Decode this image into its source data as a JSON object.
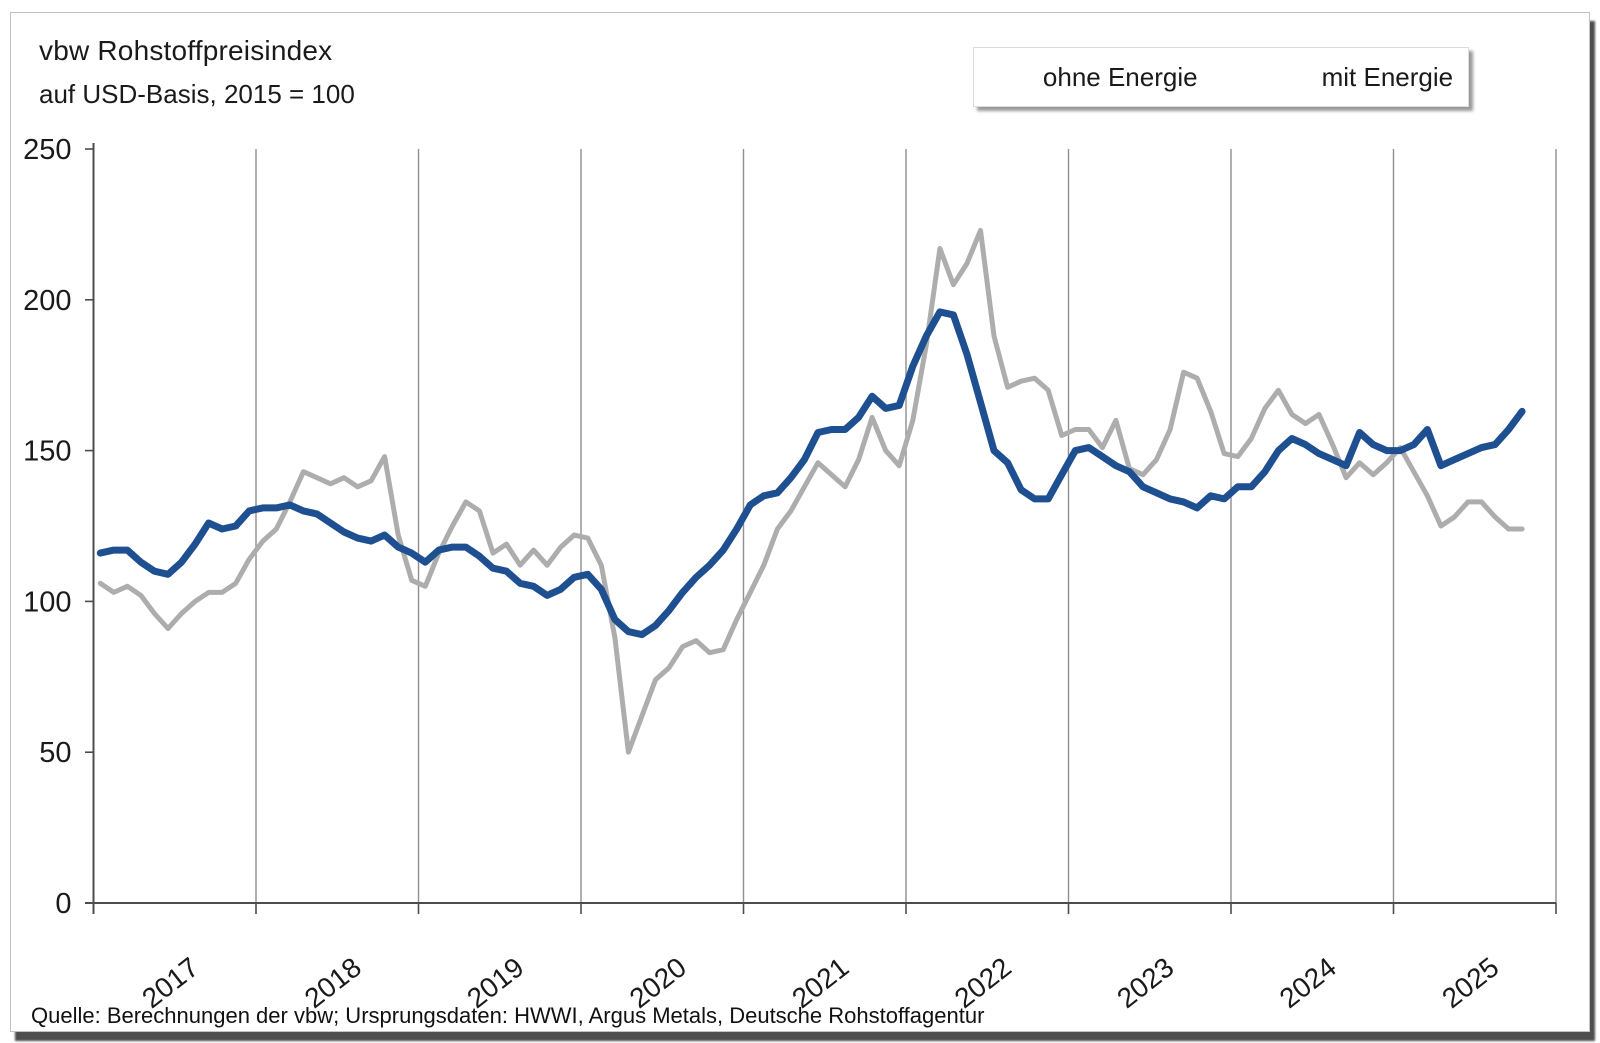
{
  "header": {
    "title": "vbw Rohstoffpreisindex",
    "subtitle": "auf USD-Basis, 2015 = 100"
  },
  "footer": {
    "source": "Quelle: Berechnungen der vbw; Ursprungsdaten: HWWI, Argus Metals, Deutsche Rohstoffagentur"
  },
  "legend": {
    "position": "top-right",
    "items": [
      {
        "label": "ohne Energie",
        "color": "#1E4F91"
      },
      {
        "label": "mit Energie",
        "color": "#ADADAD"
      }
    ]
  },
  "chart_data": {
    "type": "line",
    "title": "vbw Rohstoffpreisindex",
    "subtitle": "auf USD-Basis, 2015 = 100",
    "x_start": "2017-01",
    "frequency": "monthly",
    "x_year_labels": [
      "2017",
      "2018",
      "2019",
      "2020",
      "2021",
      "2022",
      "2023",
      "2024",
      "2025"
    ],
    "y_ticks": [
      0,
      50,
      100,
      150,
      200,
      250
    ],
    "ylim": [
      0,
      250
    ],
    "grid": "vertical-year-lines-only",
    "legend_position": "top-right",
    "axis_color": "#4d4d4d",
    "gridline_color": "#8f8f8f",
    "series": [
      {
        "name": "ohne Energie",
        "color": "#1E4F91",
        "width": 7,
        "values": [
          116,
          117,
          117,
          113,
          110,
          109,
          113,
          119,
          126,
          124,
          125,
          130,
          131,
          131,
          132,
          130,
          129,
          126,
          123,
          121,
          120,
          122,
          118,
          116,
          113,
          117,
          118,
          118,
          115,
          111,
          110,
          106,
          105,
          102,
          104,
          108,
          109,
          104,
          94,
          90,
          89,
          92,
          97,
          103,
          108,
          112,
          117,
          124,
          132,
          135,
          136,
          141,
          147,
          156,
          157,
          157,
          161,
          168,
          164,
          165,
          178,
          188,
          196,
          195,
          182,
          166,
          150,
          146,
          137,
          134,
          134,
          142,
          150,
          151,
          148,
          145,
          143,
          138,
          136,
          134,
          133,
          131,
          135,
          134,
          138,
          138,
          143,
          150,
          154,
          152,
          149,
          147,
          145,
          156,
          152,
          150,
          150,
          152,
          157,
          145,
          147,
          149,
          151,
          152,
          157,
          163
        ]
      },
      {
        "name": "mit Energie",
        "color": "#ADADAD",
        "width": 5,
        "values": [
          106,
          103,
          105,
          102,
          96,
          91,
          96,
          100,
          103,
          103,
          106,
          114,
          120,
          124,
          133,
          143,
          141,
          139,
          141,
          138,
          140,
          148,
          122,
          107,
          105,
          116,
          125,
          133,
          130,
          116,
          119,
          112,
          117,
          112,
          118,
          122,
          121,
          112,
          88,
          50,
          62,
          74,
          78,
          85,
          87,
          83,
          84,
          94,
          103,
          112,
          124,
          130,
          138,
          146,
          142,
          138,
          147,
          161,
          150,
          145,
          160,
          185,
          217,
          205,
          212,
          223,
          188,
          171,
          173,
          174,
          170,
          155,
          157,
          157,
          151,
          160,
          144,
          142,
          147,
          157,
          176,
          174,
          163,
          149,
          148,
          154,
          164,
          170,
          162,
          159,
          162,
          152,
          141,
          146,
          142,
          146,
          151,
          143,
          135,
          125,
          128,
          133,
          133,
          128,
          124,
          124
        ]
      }
    ]
  }
}
